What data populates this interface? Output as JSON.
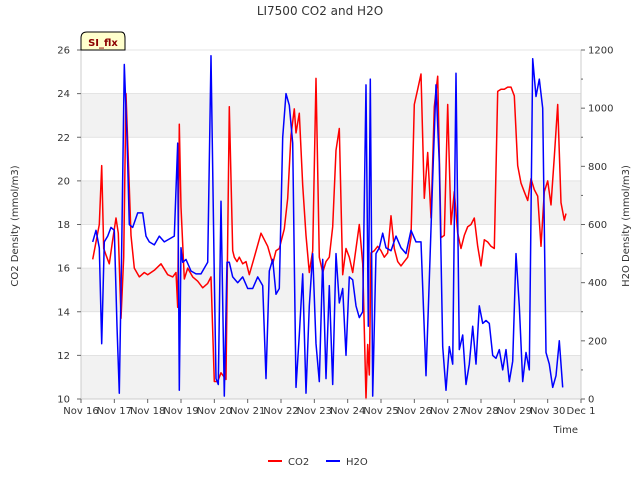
{
  "chart_data": {
    "type": "line",
    "title": "LI7500 CO2 and H2O",
    "xlabel": "Time",
    "ylabel_left": "CO2 Density (mmol/m3)",
    "ylabel_right": "H2O Density (mmol/m3)",
    "badge": "SI_flx",
    "x_ticks": [
      "Nov 16",
      "Nov 17",
      "Nov 18",
      "Nov 19",
      "Nov 20",
      "Nov 21",
      "Nov 22",
      "Nov 23",
      "Nov 24",
      "Nov 25",
      "Nov 26",
      "Nov 27",
      "Nov 28",
      "Nov 29",
      "Nov 30",
      "Dec 1"
    ],
    "xlim": [
      0,
      15
    ],
    "ylim_left": [
      10,
      26
    ],
    "yticks_left": [
      10,
      12,
      14,
      16,
      18,
      20,
      22,
      24,
      26
    ],
    "ylim_right": [
      0,
      1200
    ],
    "yticks_right": [
      0,
      200,
      400,
      600,
      800,
      1000,
      1200
    ],
    "grid": "horizontal bands",
    "legend_position": "bottom-center",
    "series": [
      {
        "name": "CO2",
        "axis": "left",
        "color": "#ff0000",
        "x": [
          0.35,
          0.45,
          0.55,
          0.62,
          0.68,
          0.75,
          0.85,
          0.95,
          1.05,
          1.12,
          1.2,
          1.28,
          1.35,
          1.42,
          1.5,
          1.6,
          1.75,
          1.9,
          2.0,
          2.2,
          2.4,
          2.6,
          2.75,
          2.85,
          2.9,
          2.95,
          3.0,
          3.1,
          3.2,
          3.35,
          3.5,
          3.65,
          3.8,
          3.9,
          4.0,
          4.1,
          4.2,
          4.35,
          4.45,
          4.55,
          4.6,
          4.68,
          4.75,
          4.85,
          4.95,
          5.05,
          5.2,
          5.4,
          5.6,
          5.75,
          5.85,
          5.95,
          6.1,
          6.2,
          6.3,
          6.4,
          6.45,
          6.55,
          6.65,
          6.75,
          6.85,
          6.95,
          7.05,
          7.15,
          7.25,
          7.35,
          7.45,
          7.55,
          7.65,
          7.75,
          7.85,
          7.95,
          8.05,
          8.15,
          8.25,
          8.35,
          8.45,
          8.55,
          8.6,
          8.65,
          8.7,
          8.8,
          8.9,
          9.0,
          9.1,
          9.2,
          9.3,
          9.4,
          9.5,
          9.6,
          9.7,
          9.8,
          9.9,
          10.0,
          10.1,
          10.2,
          10.3,
          10.4,
          10.5,
          10.6,
          10.7,
          10.8,
          10.9,
          11.0,
          11.1,
          11.2,
          11.3,
          11.4,
          11.5,
          11.6,
          11.7,
          11.8,
          11.9,
          12.0,
          12.1,
          12.2,
          12.3,
          12.4,
          12.5,
          12.6,
          12.7,
          12.8,
          12.9,
          13.0,
          13.1,
          13.2,
          13.3,
          13.4,
          13.5,
          13.6,
          13.7,
          13.8,
          13.9,
          14.0,
          14.1,
          14.2,
          14.3,
          14.4,
          14.5,
          14.55
        ],
        "values": [
          16.4,
          17.2,
          18.0,
          20.7,
          16.9,
          16.6,
          16.2,
          17.3,
          18.3,
          17.6,
          13.7,
          16.5,
          24.0,
          21.0,
          17.5,
          16.0,
          15.6,
          15.8,
          15.7,
          15.9,
          16.2,
          15.7,
          15.6,
          15.8,
          14.2,
          22.6,
          18.8,
          15.5,
          16.0,
          15.6,
          15.4,
          15.1,
          15.3,
          15.6,
          10.8,
          10.8,
          11.2,
          10.9,
          23.4,
          16.8,
          16.5,
          16.3,
          16.5,
          16.2,
          16.3,
          15.7,
          16.5,
          17.6,
          17.0,
          16.2,
          16.8,
          16.9,
          17.8,
          19.2,
          22.1,
          23.3,
          22.2,
          23.1,
          19.8,
          17.5,
          15.8,
          16.8,
          24.7,
          16.5,
          15.8,
          16.3,
          16.5,
          17.9,
          21.4,
          22.4,
          15.7,
          16.9,
          16.5,
          15.8,
          16.9,
          18.0,
          16.2,
          10.0,
          12.5,
          11.1,
          16.7,
          16.8,
          17.0,
          16.8,
          16.5,
          16.7,
          18.4,
          16.9,
          16.3,
          16.1,
          16.3,
          16.5,
          17.4,
          23.5,
          24.2,
          24.9,
          19.2,
          21.3,
          18.3,
          23.4,
          24.8,
          17.4,
          17.5,
          23.5,
          18.0,
          19.5,
          17.6,
          16.9,
          17.5,
          17.9,
          18.0,
          18.3,
          17.0,
          16.1,
          17.3,
          17.2,
          17.0,
          16.9,
          24.1,
          24.2,
          24.2,
          24.3,
          24.3,
          23.9,
          20.7,
          19.9,
          19.5,
          19.1,
          20.1,
          19.6,
          19.3,
          17.0,
          19.5,
          20.0,
          18.9,
          21.1,
          23.5,
          19.0,
          18.2,
          18.5
        ],
        "note": ""
      },
      {
        "name": "H2O",
        "axis": "right",
        "color": "#0000ff",
        "x": [
          0.35,
          0.45,
          0.55,
          0.62,
          0.7,
          0.8,
          0.9,
          1.0,
          1.08,
          1.15,
          1.22,
          1.3,
          1.38,
          1.45,
          1.55,
          1.7,
          1.85,
          1.95,
          2.05,
          2.2,
          2.35,
          2.5,
          2.65,
          2.8,
          2.9,
          2.95,
          3.0,
          3.05,
          3.15,
          3.3,
          3.45,
          3.6,
          3.7,
          3.8,
          3.9,
          4.0,
          4.05,
          4.12,
          4.2,
          4.3,
          4.38,
          4.45,
          4.55,
          4.7,
          4.85,
          5.0,
          5.15,
          5.3,
          5.45,
          5.55,
          5.65,
          5.75,
          5.85,
          5.95,
          6.05,
          6.15,
          6.25,
          6.35,
          6.45,
          6.55,
          6.65,
          6.75,
          6.85,
          6.95,
          7.05,
          7.15,
          7.25,
          7.35,
          7.45,
          7.55,
          7.65,
          7.75,
          7.85,
          7.95,
          8.05,
          8.15,
          8.25,
          8.35,
          8.45,
          8.55,
          8.62,
          8.68,
          8.75,
          8.85,
          8.95,
          9.05,
          9.15,
          9.3,
          9.45,
          9.6,
          9.75,
          9.9,
          10.05,
          10.2,
          10.35,
          10.45,
          10.55,
          10.65,
          10.75,
          10.85,
          10.95,
          11.05,
          11.15,
          11.25,
          11.35,
          11.45,
          11.55,
          11.65,
          11.75,
          11.85,
          11.95,
          12.05,
          12.15,
          12.25,
          12.35,
          12.45,
          12.55,
          12.65,
          12.75,
          12.85,
          12.95,
          13.05,
          13.15,
          13.25,
          13.35,
          13.45,
          13.55,
          13.65,
          13.75,
          13.85,
          13.95,
          14.05,
          14.15,
          14.25,
          14.35,
          14.45
        ],
        "values": [
          540,
          580,
          520,
          190,
          540,
          560,
          590,
          580,
          250,
          20,
          520,
          1150,
          900,
          600,
          590,
          640,
          640,
          560,
          540,
          530,
          560,
          540,
          550,
          560,
          880,
          30,
          520,
          470,
          480,
          440,
          430,
          430,
          450,
          470,
          1180,
          420,
          70,
          50,
          680,
          10,
          470,
          470,
          420,
          400,
          420,
          380,
          380,
          420,
          390,
          70,
          440,
          480,
          360,
          380,
          900,
          1050,
          1010,
          880,
          40,
          220,
          430,
          20,
          320,
          500,
          190,
          60,
          480,
          70,
          390,
          50,
          500,
          330,
          380,
          150,
          420,
          410,
          320,
          280,
          300,
          1080,
          250,
          1100,
          10,
          500,
          520,
          570,
          520,
          510,
          560,
          520,
          500,
          580,
          540,
          540,
          80,
          410,
          760,
          1080,
          810,
          180,
          30,
          180,
          120,
          1120,
          170,
          220,
          50,
          120,
          250,
          120,
          320,
          260,
          270,
          260,
          150,
          140,
          170,
          100,
          170,
          60,
          130,
          500,
          320,
          60,
          160,
          100,
          1170,
          1040,
          1100,
          1000,
          160,
          120,
          40,
          80,
          200,
          40
        ],
        "note": ""
      }
    ]
  },
  "legend": [
    {
      "label": "CO2",
      "color": "#ff0000"
    },
    {
      "label": "H2O",
      "color": "#0000ff"
    }
  ]
}
